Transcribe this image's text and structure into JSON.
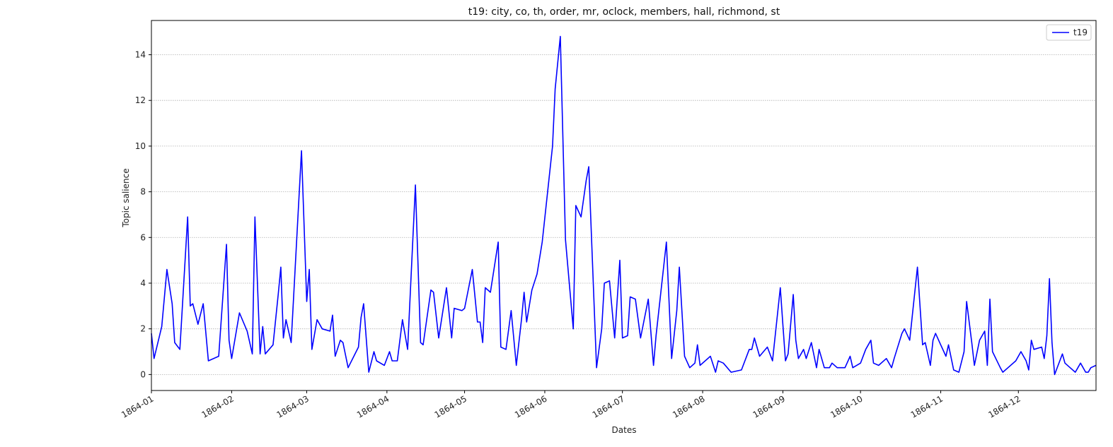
{
  "chart_data": {
    "type": "line",
    "title": "t19: city, co, th, order, mr, oclock, members, hall, richmond, st",
    "xlabel": "Dates",
    "ylabel": "Topic salience",
    "xlim": [
      "1864-01-01",
      "1864-12-31"
    ],
    "ylim": [
      -0.7,
      15.5
    ],
    "x_tick_labels": [
      "1864-01",
      "1864-02",
      "1864-03",
      "1864-04",
      "1864-05",
      "1864-06",
      "1864-07",
      "1864-08",
      "1864-09",
      "1864-10",
      "1864-11",
      "1864-12"
    ],
    "y_ticks": [
      0,
      2,
      4,
      6,
      8,
      10,
      12,
      14
    ],
    "grid": "horizontal dotted",
    "legend": {
      "position": "top-right",
      "entries": [
        "t19"
      ]
    },
    "colors": {
      "series": "#0000ff",
      "grid": "#b0b0b0",
      "axis": "#000000"
    },
    "series": [
      {
        "name": "t19",
        "points": [
          [
            "1864-01-01",
            1.8
          ],
          [
            "1864-01-02",
            0.7
          ],
          [
            "1864-01-05",
            2.1
          ],
          [
            "1864-01-07",
            4.6
          ],
          [
            "1864-01-09",
            3.1
          ],
          [
            "1864-01-10",
            1.4
          ],
          [
            "1864-01-12",
            1.1
          ],
          [
            "1864-01-15",
            6.9
          ],
          [
            "1864-01-16",
            3.0
          ],
          [
            "1864-01-17",
            3.1
          ],
          [
            "1864-01-19",
            2.2
          ],
          [
            "1864-01-21",
            3.1
          ],
          [
            "1864-01-23",
            0.6
          ],
          [
            "1864-01-27",
            0.8
          ],
          [
            "1864-01-30",
            5.7
          ],
          [
            "1864-01-31",
            1.5
          ],
          [
            "1864-02-01",
            0.7
          ],
          [
            "1864-02-04",
            2.7
          ],
          [
            "1864-02-07",
            1.9
          ],
          [
            "1864-02-09",
            0.9
          ],
          [
            "1864-02-10",
            6.9
          ],
          [
            "1864-02-12",
            0.9
          ],
          [
            "1864-02-13",
            2.1
          ],
          [
            "1864-02-14",
            0.9
          ],
          [
            "1864-02-17",
            1.3
          ],
          [
            "1864-02-19",
            3.5
          ],
          [
            "1864-02-20",
            4.7
          ],
          [
            "1864-02-21",
            1.6
          ],
          [
            "1864-02-22",
            2.4
          ],
          [
            "1864-02-24",
            1.4
          ],
          [
            "1864-02-28",
            9.8
          ],
          [
            "1864-03-01",
            3.2
          ],
          [
            "1864-03-02",
            4.6
          ],
          [
            "1864-03-03",
            1.1
          ],
          [
            "1864-03-05",
            2.4
          ],
          [
            "1864-03-07",
            2.0
          ],
          [
            "1864-03-10",
            1.9
          ],
          [
            "1864-03-11",
            2.6
          ],
          [
            "1864-03-12",
            0.8
          ],
          [
            "1864-03-14",
            1.5
          ],
          [
            "1864-03-15",
            1.4
          ],
          [
            "1864-03-17",
            0.3
          ],
          [
            "1864-03-21",
            1.2
          ],
          [
            "1864-03-22",
            2.5
          ],
          [
            "1864-03-23",
            3.1
          ],
          [
            "1864-03-25",
            0.1
          ],
          [
            "1864-03-27",
            1.0
          ],
          [
            "1864-03-28",
            0.6
          ],
          [
            "1864-03-31",
            0.4
          ],
          [
            "1864-04-02",
            1.0
          ],
          [
            "1864-04-03",
            0.6
          ],
          [
            "1864-04-05",
            0.6
          ],
          [
            "1864-04-07",
            2.4
          ],
          [
            "1864-04-09",
            1.1
          ],
          [
            "1864-04-12",
            8.3
          ],
          [
            "1864-04-14",
            1.4
          ],
          [
            "1864-04-15",
            1.3
          ],
          [
            "1864-04-18",
            3.7
          ],
          [
            "1864-04-19",
            3.6
          ],
          [
            "1864-04-21",
            1.6
          ],
          [
            "1864-04-24",
            3.8
          ],
          [
            "1864-04-26",
            1.6
          ],
          [
            "1864-04-27",
            2.9
          ],
          [
            "1864-04-30",
            2.8
          ],
          [
            "1864-05-01",
            2.9
          ],
          [
            "1864-05-04",
            4.6
          ],
          [
            "1864-05-06",
            2.3
          ],
          [
            "1864-05-07",
            2.3
          ],
          [
            "1864-05-08",
            1.4
          ],
          [
            "1864-05-09",
            3.8
          ],
          [
            "1864-05-11",
            3.6
          ],
          [
            "1864-05-14",
            5.8
          ],
          [
            "1864-05-15",
            1.2
          ],
          [
            "1864-05-17",
            1.1
          ],
          [
            "1864-05-19",
            2.8
          ],
          [
            "1864-05-21",
            0.4
          ],
          [
            "1864-05-23",
            2.4
          ],
          [
            "1864-05-24",
            3.6
          ],
          [
            "1864-05-25",
            2.3
          ],
          [
            "1864-05-27",
            3.7
          ],
          [
            "1864-05-29",
            4.4
          ],
          [
            "1864-05-31",
            5.8
          ],
          [
            "1864-06-04",
            10.0
          ],
          [
            "1864-06-05",
            12.5
          ],
          [
            "1864-06-07",
            14.8
          ],
          [
            "1864-06-09",
            5.9
          ],
          [
            "1864-06-12",
            2.0
          ],
          [
            "1864-06-13",
            7.4
          ],
          [
            "1864-06-15",
            6.9
          ],
          [
            "1864-06-17",
            8.5
          ],
          [
            "1864-06-18",
            9.1
          ],
          [
            "1864-06-21",
            0.3
          ],
          [
            "1864-06-23",
            2.0
          ],
          [
            "1864-06-24",
            4.0
          ],
          [
            "1864-06-26",
            4.1
          ],
          [
            "1864-06-28",
            1.6
          ],
          [
            "1864-06-30",
            5.0
          ],
          [
            "1864-07-01",
            1.6
          ],
          [
            "1864-07-03",
            1.7
          ],
          [
            "1864-07-04",
            3.4
          ],
          [
            "1864-07-06",
            3.3
          ],
          [
            "1864-07-08",
            1.6
          ],
          [
            "1864-07-11",
            3.3
          ],
          [
            "1864-07-13",
            0.4
          ],
          [
            "1864-07-14",
            1.7
          ],
          [
            "1864-07-18",
            5.8
          ],
          [
            "1864-07-20",
            0.7
          ],
          [
            "1864-07-22",
            2.8
          ],
          [
            "1864-07-23",
            4.7
          ],
          [
            "1864-07-25",
            0.8
          ],
          [
            "1864-07-27",
            0.3
          ],
          [
            "1864-07-29",
            0.5
          ],
          [
            "1864-07-30",
            1.3
          ],
          [
            "1864-07-31",
            0.4
          ],
          [
            "1864-08-04",
            0.8
          ],
          [
            "1864-08-06",
            0.1
          ],
          [
            "1864-08-07",
            0.6
          ],
          [
            "1864-08-09",
            0.5
          ],
          [
            "1864-08-12",
            0.1
          ],
          [
            "1864-08-16",
            0.2
          ],
          [
            "1864-08-19",
            1.1
          ],
          [
            "1864-08-20",
            1.1
          ],
          [
            "1864-08-21",
            1.6
          ],
          [
            "1864-08-23",
            0.8
          ],
          [
            "1864-08-26",
            1.2
          ],
          [
            "1864-08-28",
            0.6
          ],
          [
            "1864-08-31",
            3.8
          ],
          [
            "1864-09-01",
            2.2
          ],
          [
            "1864-09-02",
            0.6
          ],
          [
            "1864-09-03",
            0.9
          ],
          [
            "1864-09-05",
            3.5
          ],
          [
            "1864-09-06",
            1.5
          ],
          [
            "1864-09-07",
            0.7
          ],
          [
            "1864-09-09",
            1.1
          ],
          [
            "1864-09-10",
            0.7
          ],
          [
            "1864-09-12",
            1.4
          ],
          [
            "1864-09-14",
            0.3
          ],
          [
            "1864-09-15",
            1.1
          ],
          [
            "1864-09-17",
            0.3
          ],
          [
            "1864-09-19",
            0.3
          ],
          [
            "1864-09-20",
            0.5
          ],
          [
            "1864-09-22",
            0.3
          ],
          [
            "1864-09-25",
            0.3
          ],
          [
            "1864-09-27",
            0.8
          ],
          [
            "1864-09-28",
            0.3
          ],
          [
            "1864-10-01",
            0.5
          ],
          [
            "1864-10-03",
            1.1
          ],
          [
            "1864-10-05",
            1.5
          ],
          [
            "1864-10-06",
            0.5
          ],
          [
            "1864-10-08",
            0.4
          ],
          [
            "1864-10-11",
            0.7
          ],
          [
            "1864-10-13",
            0.3
          ],
          [
            "1864-10-14",
            0.7
          ],
          [
            "1864-10-17",
            1.8
          ],
          [
            "1864-10-18",
            2.0
          ],
          [
            "1864-10-20",
            1.5
          ],
          [
            "1864-10-23",
            4.7
          ],
          [
            "1864-10-25",
            1.3
          ],
          [
            "1864-10-26",
            1.4
          ],
          [
            "1864-10-28",
            0.4
          ],
          [
            "1864-10-29",
            1.5
          ],
          [
            "1864-10-30",
            1.8
          ],
          [
            "1864-11-01",
            1.3
          ],
          [
            "1864-11-03",
            0.8
          ],
          [
            "1864-11-04",
            1.3
          ],
          [
            "1864-11-06",
            0.2
          ],
          [
            "1864-11-08",
            0.1
          ],
          [
            "1864-11-10",
            1.0
          ],
          [
            "1864-11-11",
            3.2
          ],
          [
            "1864-11-13",
            1.4
          ],
          [
            "1864-11-14",
            0.4
          ],
          [
            "1864-11-16",
            1.5
          ],
          [
            "1864-11-18",
            1.9
          ],
          [
            "1864-11-19",
            0.4
          ],
          [
            "1864-11-20",
            3.3
          ],
          [
            "1864-11-21",
            1.0
          ],
          [
            "1864-11-24",
            0.3
          ],
          [
            "1864-11-25",
            0.1
          ],
          [
            "1864-11-27",
            0.3
          ],
          [
            "1864-11-30",
            0.6
          ],
          [
            "1864-12-02",
            1.0
          ],
          [
            "1864-12-04",
            0.6
          ],
          [
            "1864-12-05",
            0.2
          ],
          [
            "1864-12-06",
            1.5
          ],
          [
            "1864-12-07",
            1.1
          ],
          [
            "1864-12-10",
            1.2
          ],
          [
            "1864-12-11",
            0.7
          ],
          [
            "1864-12-12",
            1.7
          ],
          [
            "1864-12-13",
            4.2
          ],
          [
            "1864-12-14",
            1.4
          ],
          [
            "1864-12-15",
            0.0
          ],
          [
            "1864-12-18",
            0.9
          ],
          [
            "1864-12-19",
            0.5
          ],
          [
            "1864-12-21",
            0.3
          ],
          [
            "1864-12-23",
            0.1
          ],
          [
            "1864-12-24",
            0.3
          ],
          [
            "1864-12-25",
            0.5
          ],
          [
            "1864-12-27",
            0.1
          ],
          [
            "1864-12-28",
            0.1
          ],
          [
            "1864-12-29",
            0.3
          ],
          [
            "1864-12-31",
            0.4
          ]
        ]
      }
    ]
  }
}
